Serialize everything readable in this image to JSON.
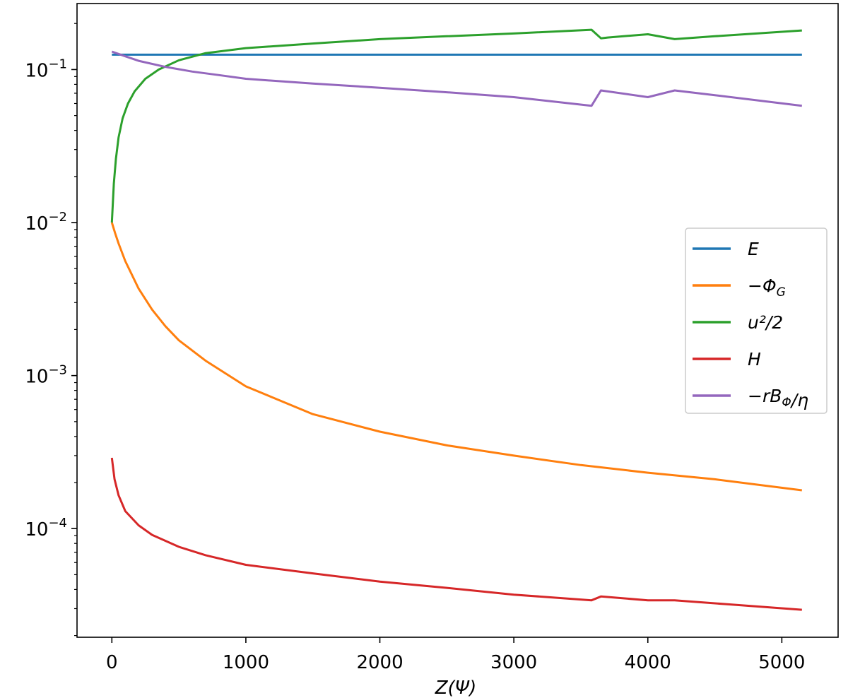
{
  "chart_data": {
    "type": "line",
    "title": "",
    "xlabel": "Z(Ψ)",
    "ylabel": "",
    "yscale": "log",
    "xlim": [
      -260,
      5420
    ],
    "ylim": [
      1.95e-05,
      0.27
    ],
    "grid": false,
    "legend_position": "center-right",
    "x_ticks": [
      0,
      1000,
      2000,
      3000,
      4000,
      5000
    ],
    "x_tick_labels": [
      "0",
      "1000",
      "2000",
      "3000",
      "4000",
      "5000"
    ],
    "y_ticks": [
      0.1,
      0.01,
      0.001,
      0.0001
    ],
    "y_tick_labels": [
      {
        "base": "10",
        "exp": "−1"
      },
      {
        "base": "10",
        "exp": "−2"
      },
      {
        "base": "10",
        "exp": "−3"
      },
      {
        "base": "10",
        "exp": "−4"
      }
    ],
    "series": [
      {
        "name": "E",
        "color": "#1f77b4",
        "points": [
          [
            0,
            0.125
          ],
          [
            1000,
            0.125
          ],
          [
            2000,
            0.125
          ],
          [
            3000,
            0.125
          ],
          [
            4000,
            0.125
          ],
          [
            5150,
            0.125
          ]
        ]
      },
      {
        "name": "−Φ_G",
        "color": "#ff7f0e",
        "points": [
          [
            0,
            0.01
          ],
          [
            25,
            0.0085
          ],
          [
            50,
            0.0073
          ],
          [
            100,
            0.0056
          ],
          [
            200,
            0.0037
          ],
          [
            300,
            0.0027
          ],
          [
            400,
            0.0021
          ],
          [
            500,
            0.0017
          ],
          [
            700,
            0.00125
          ],
          [
            1000,
            0.00085
          ],
          [
            1500,
            0.00056
          ],
          [
            2000,
            0.00043
          ],
          [
            2500,
            0.00035
          ],
          [
            3000,
            0.0003
          ],
          [
            3500,
            0.00026
          ],
          [
            4000,
            0.000232
          ],
          [
            4500,
            0.00021
          ],
          [
            5150,
            0.000178
          ]
        ]
      },
      {
        "name": "u²/2",
        "color": "#2ca02c",
        "points": [
          [
            0,
            0.01
          ],
          [
            15,
            0.018
          ],
          [
            30,
            0.026
          ],
          [
            50,
            0.036
          ],
          [
            80,
            0.048
          ],
          [
            120,
            0.06
          ],
          [
            170,
            0.072
          ],
          [
            250,
            0.087
          ],
          [
            350,
            0.1
          ],
          [
            500,
            0.115
          ],
          [
            700,
            0.128
          ],
          [
            1000,
            0.138
          ],
          [
            1500,
            0.148
          ],
          [
            2000,
            0.158
          ],
          [
            2500,
            0.165
          ],
          [
            3000,
            0.172
          ],
          [
            3580,
            0.182
          ],
          [
            3650,
            0.16
          ],
          [
            3700,
            0.162
          ],
          [
            4000,
            0.17
          ],
          [
            4200,
            0.158
          ],
          [
            4500,
            0.165
          ],
          [
            5150,
            0.18
          ]
        ]
      },
      {
        "name": "H",
        "color": "#d62728",
        "points": [
          [
            0,
            0.00029
          ],
          [
            20,
            0.00021
          ],
          [
            50,
            0.000165
          ],
          [
            100,
            0.00013
          ],
          [
            200,
            0.000105
          ],
          [
            300,
            9.1e-05
          ],
          [
            500,
            7.6e-05
          ],
          [
            700,
            6.7e-05
          ],
          [
            1000,
            5.8e-05
          ],
          [
            1500,
            5.1e-05
          ],
          [
            2000,
            4.5e-05
          ],
          [
            2500,
            4.1e-05
          ],
          [
            3000,
            3.7e-05
          ],
          [
            3580,
            3.4e-05
          ],
          [
            3650,
            3.6e-05
          ],
          [
            4000,
            3.4e-05
          ],
          [
            4200,
            3.4e-05
          ],
          [
            4600,
            3.2e-05
          ],
          [
            5150,
            2.95e-05
          ]
        ]
      },
      {
        "name": "−rB_Φ/η",
        "color": "#9467bd",
        "points": [
          [
            0,
            0.131
          ],
          [
            100,
            0.122
          ],
          [
            200,
            0.114
          ],
          [
            400,
            0.104
          ],
          [
            600,
            0.097
          ],
          [
            800,
            0.092
          ],
          [
            1000,
            0.087
          ],
          [
            1500,
            0.081
          ],
          [
            2000,
            0.076
          ],
          [
            2500,
            0.071
          ],
          [
            3000,
            0.066
          ],
          [
            3580,
            0.058
          ],
          [
            3650,
            0.073
          ],
          [
            4000,
            0.066
          ],
          [
            4200,
            0.073
          ],
          [
            4500,
            0.068
          ],
          [
            5150,
            0.058
          ]
        ]
      }
    ]
  }
}
